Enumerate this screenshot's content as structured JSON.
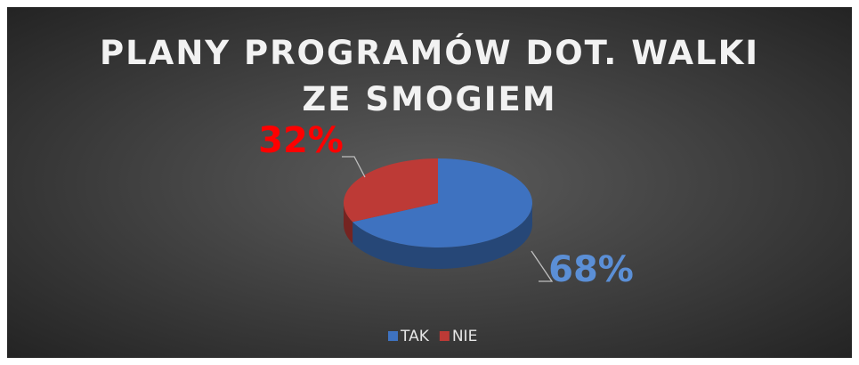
{
  "chart_data": {
    "type": "pie3d",
    "title": "PLANY PROGRAMÓW DOT. WALKI ZE SMOGIEM",
    "categories": [
      "TAK",
      "NIE"
    ],
    "values": [
      68,
      32
    ],
    "value_labels": [
      "68%",
      "32%"
    ],
    "colors": [
      "#3e72c0",
      "#bd3a36"
    ],
    "label_colors": [
      "#5b8fd6",
      "#ff0000"
    ],
    "legend": "bottom"
  }
}
